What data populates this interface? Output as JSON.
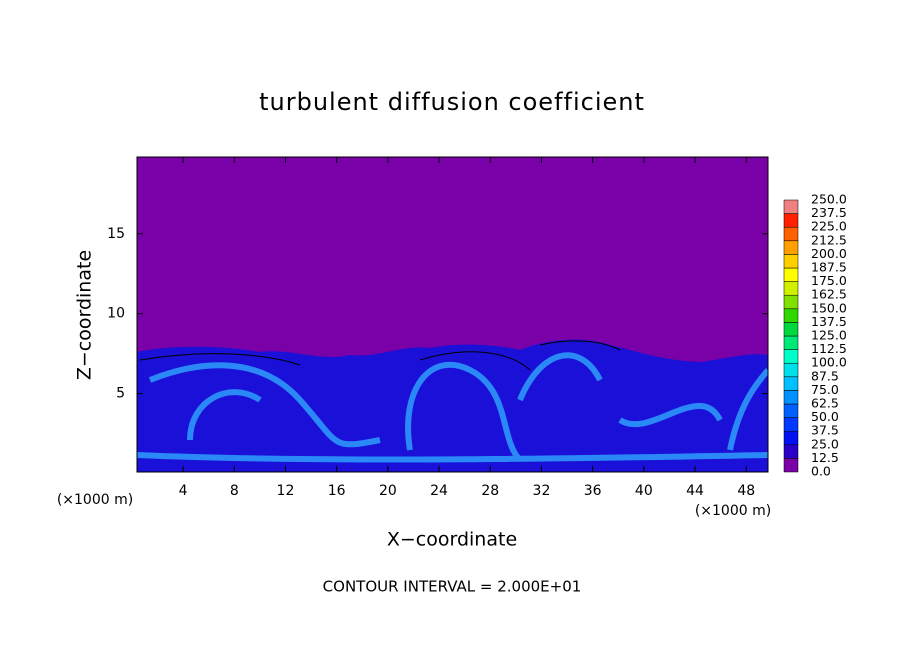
{
  "chart_data": {
    "type": "heatmap",
    "title": "turbulent diffusion coefficient",
    "x_label": "X−coordinate",
    "y_label": "Z−coordinate",
    "x_unit_label": "(×1000 m)",
    "x_unit_label_right": "(×1000 m)",
    "footnote": "CONTOUR INTERVAL = 2.000E+01",
    "xlim": [
      0.4,
      49.7
    ],
    "ylim": [
      0.1,
      19.8
    ],
    "xticks": [
      4,
      8,
      12,
      16,
      20,
      24,
      28,
      32,
      36,
      40,
      44,
      48
    ],
    "yticks": [
      5,
      10,
      15
    ],
    "colorbar": {
      "levels": [
        {
          "value": 0,
          "label": "0.0"
        },
        {
          "value": 12.5,
          "label": "12.5"
        },
        {
          "value": 25,
          "label": "25.0"
        },
        {
          "value": 37.5,
          "label": "37.5"
        },
        {
          "value": 50,
          "label": "50.0"
        },
        {
          "value": 62.5,
          "label": "62.5"
        },
        {
          "value": 75,
          "label": "75.0"
        },
        {
          "value": 87.5,
          "label": "87.5"
        },
        {
          "value": 100,
          "label": "100.0"
        },
        {
          "value": 112.5,
          "label": "112.5"
        },
        {
          "value": 125,
          "label": "125.0"
        },
        {
          "value": 137.5,
          "label": "137.5"
        },
        {
          "value": 150,
          "label": "150.0"
        },
        {
          "value": 162.5,
          "label": "162.5"
        },
        {
          "value": 175,
          "label": "175.0"
        },
        {
          "value": 187.5,
          "label": "187.5"
        },
        {
          "value": 200,
          "label": "200.0"
        },
        {
          "value": 212.5,
          "label": "212.5"
        },
        {
          "value": 225,
          "label": "225.0"
        },
        {
          "value": 237.5,
          "label": "237.5"
        },
        {
          "value": 250,
          "label": "250.0"
        }
      ],
      "colors": [
        "#7a00a8",
        "#2a00c8",
        "#0010f0",
        "#0038ff",
        "#0060ff",
        "#0090ff",
        "#00c0ff",
        "#00e0e8",
        "#00ffc8",
        "#00e878",
        "#00d840",
        "#30d800",
        "#80e000",
        "#d0f000",
        "#ffff00",
        "#ffd000",
        "#ffa000",
        "#ff6000",
        "#ff2000",
        "#f08080"
      ]
    }
  }
}
